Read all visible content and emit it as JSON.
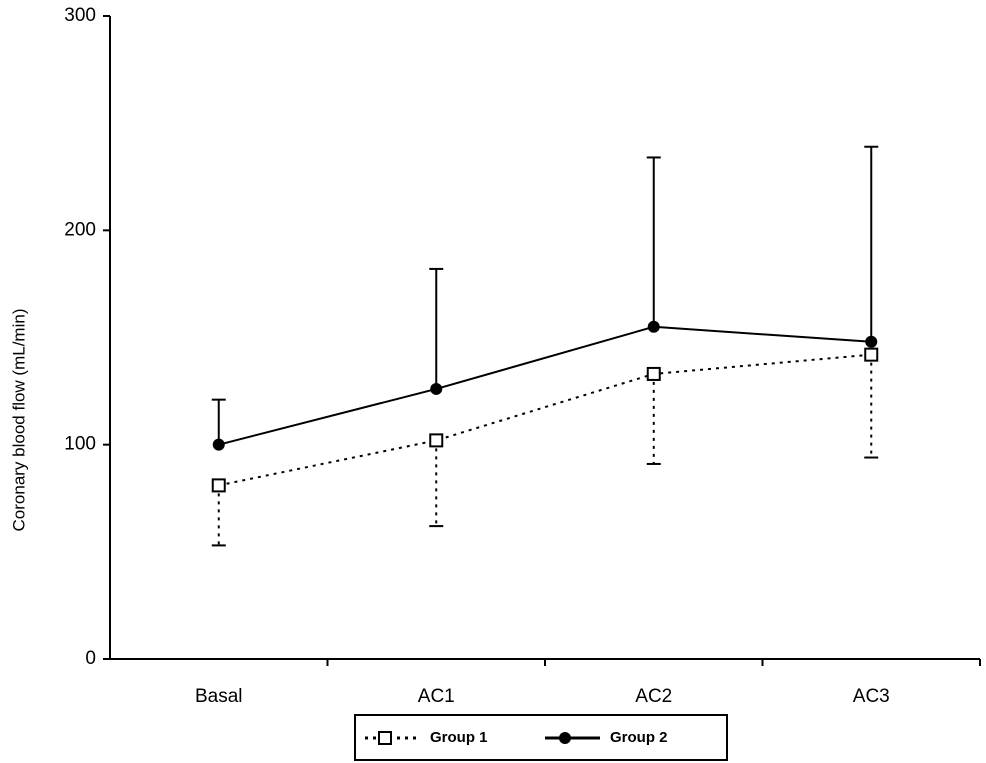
{
  "chart_data": {
    "type": "line",
    "y_label": "Coronary blood flow (mL/min)",
    "categories": [
      "Basal",
      "AC1",
      "AC2",
      "AC3"
    ],
    "series": [
      {
        "name": "Group 1",
        "color": "#000000",
        "line_style": "dotted",
        "marker": "square-open",
        "error_direction": "down",
        "values": [
          81,
          102,
          133,
          142
        ],
        "errors": [
          28,
          40,
          42,
          48
        ]
      },
      {
        "name": "Group 2",
        "color": "#000000",
        "line_style": "solid",
        "marker": "circle-filled",
        "error_direction": "up",
        "values": [
          100,
          126,
          155,
          148
        ],
        "errors": [
          21,
          56,
          79,
          91
        ]
      }
    ],
    "ylim": [
      0,
      300
    ],
    "yticks": [
      0,
      100,
      200,
      300
    ],
    "grid": false
  }
}
